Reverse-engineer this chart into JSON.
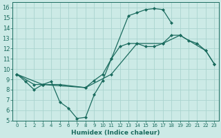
{
  "background_color": "#cceae6",
  "grid_color": "#aad4cf",
  "line_color": "#1a6b5e",
  "xlabel": "Humidex (Indice chaleur)",
  "xlim": [
    -0.5,
    23.5
  ],
  "ylim": [
    5,
    16.5
  ],
  "xticks": [
    0,
    1,
    2,
    3,
    4,
    5,
    6,
    7,
    8,
    9,
    10,
    11,
    12,
    13,
    14,
    15,
    16,
    17,
    18,
    19,
    20,
    21,
    22,
    23
  ],
  "yticks": [
    5,
    6,
    7,
    8,
    9,
    10,
    11,
    12,
    13,
    14,
    15,
    16
  ],
  "series": [
    {
      "x": [
        0,
        1,
        2,
        3,
        4,
        5,
        6,
        7,
        8,
        9,
        10,
        11,
        13,
        14,
        15,
        16,
        17,
        18
      ],
      "y": [
        9.5,
        8.8,
        8.0,
        8.5,
        8.8,
        6.8,
        6.2,
        5.2,
        5.3,
        7.5,
        8.9,
        11.0,
        15.2,
        15.5,
        15.8,
        15.9,
        15.8,
        14.5
      ]
    },
    {
      "x": [
        0,
        2,
        3,
        5,
        8,
        9,
        10,
        11,
        12,
        13,
        14,
        15,
        16,
        17,
        18,
        19,
        20,
        21,
        22,
        23
      ],
      "y": [
        9.5,
        8.5,
        8.5,
        8.5,
        8.2,
        8.9,
        9.5,
        11.0,
        12.2,
        12.5,
        12.5,
        12.2,
        12.2,
        12.5,
        13.3,
        13.3,
        12.8,
        12.5,
        11.8,
        10.5
      ]
    },
    {
      "x": [
        0,
        3,
        8,
        11,
        14,
        17,
        19,
        22,
        23
      ],
      "y": [
        9.5,
        8.5,
        8.2,
        9.5,
        12.5,
        12.5,
        13.3,
        11.8,
        10.5
      ]
    }
  ]
}
